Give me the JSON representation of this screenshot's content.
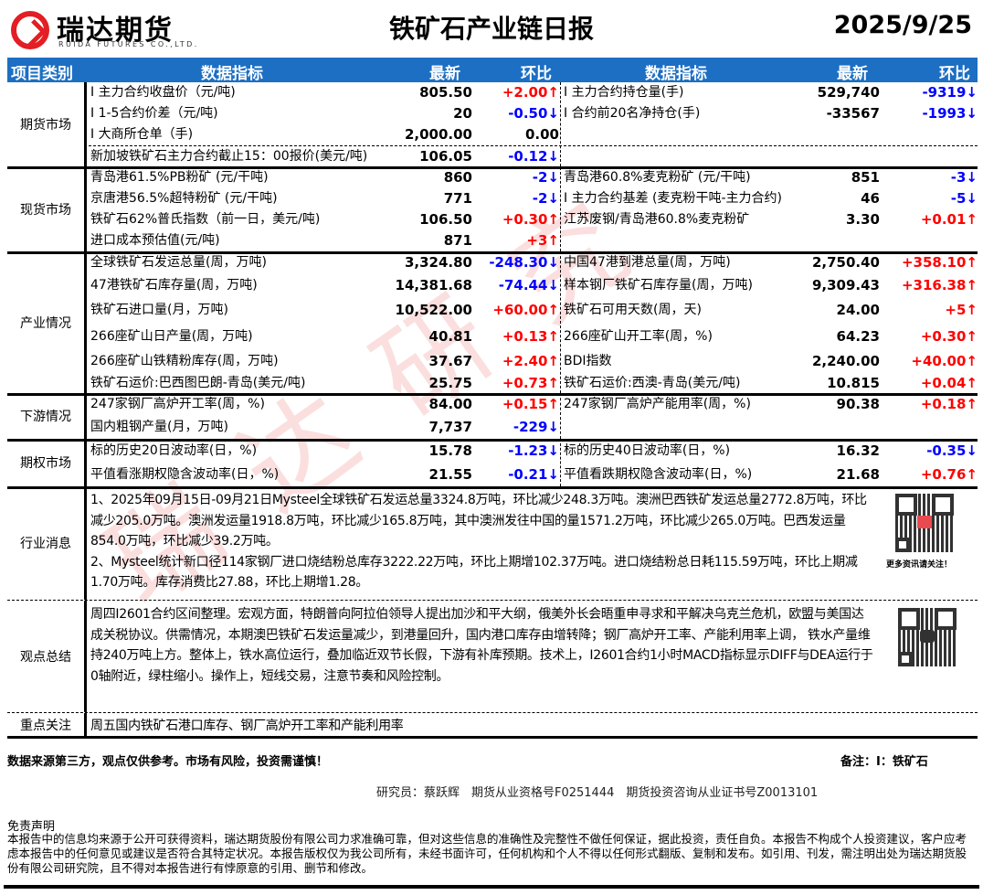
{
  "header": {
    "logo_cn": "瑞达期货",
    "logo_en": "RUIDA FUTURES CO.,LTD.",
    "title": "铁矿石产业链日报",
    "date": "2025/9/25"
  },
  "watermark": "瑞达研究",
  "columns": {
    "category": "项目类别",
    "indicator": "数据指标",
    "latest": "最新",
    "change": "环比",
    "indicator2": "数据指标",
    "latest2": "最新",
    "change2": "环比"
  },
  "colors": {
    "header_bg": "#1c6fc3",
    "up": "#ff0000",
    "down": "#0000ff"
  },
  "sections": [
    {
      "category": "期货市场",
      "rows": [
        {
          "left": {
            "label": "I 主力合约收盘价（元/吨)",
            "value": "805.50",
            "change": "+2.00↑",
            "dir": "up"
          },
          "right": {
            "label": "I 主力合约持仓量(手)",
            "value": "529,740",
            "change": "-9319↓",
            "dir": "down"
          }
        },
        {
          "left": {
            "label": "I 1-5合约价差（元/吨)",
            "value": "20",
            "change": "-0.50↓",
            "dir": "down"
          },
          "right": {
            "label": "I 合约前20名净持仓(手)",
            "value": "-33567",
            "change": "-1993↓",
            "dir": "down"
          }
        },
        {
          "left": {
            "label": "I 大商所仓单（手)",
            "value": "2,000.00",
            "change": "0.00",
            "dir": "flat"
          },
          "right": null
        },
        {
          "left": {
            "label": "新加坡铁矿石主力合约截止15：00报价(美元/吨)",
            "value": "106.05",
            "change": "-0.12↓",
            "dir": "down"
          },
          "right": null
        }
      ]
    },
    {
      "category": "现货市场",
      "rows": [
        {
          "left": {
            "label": "青岛港61.5%PB粉矿 (元/干吨)",
            "value": "860",
            "change": "-2↓",
            "dir": "down"
          },
          "right": {
            "label": "青岛港60.8%麦克粉矿 (元/干吨)",
            "value": "851",
            "change": "-3↓",
            "dir": "down"
          }
        },
        {
          "left": {
            "label": "京唐港56.5%超特粉矿 (元/干吨)",
            "value": "771",
            "change": "-2↓",
            "dir": "down"
          },
          "right": {
            "label": "I 主力合约基差 (麦克粉干吨-主力合约)",
            "value": "46",
            "change": "-5↓",
            "dir": "down"
          }
        },
        {
          "left": {
            "label": "铁矿石62%普氏指数（前一日，美元/吨)",
            "value": "106.50",
            "change": "+0.30↑",
            "dir": "up"
          },
          "right": {
            "label": "江苏废钢/青岛港60.8%麦克粉矿",
            "value": "3.30",
            "change": "+0.01↑",
            "dir": "up"
          }
        },
        {
          "left": {
            "label": "进口成本预估值(元/吨)",
            "value": "871",
            "change": "+3↑",
            "dir": "up"
          },
          "right": null
        }
      ]
    },
    {
      "category": "产业情况",
      "rows": [
        {
          "left": {
            "label": "全球铁矿石发运总量(周，万吨)",
            "value": "3,324.80",
            "change": "-248.30↓",
            "dir": "down"
          },
          "right": {
            "label": "中国47港到港总量(周，万吨)",
            "value": "2,750.40",
            "change": "+358.10↑",
            "dir": "up"
          }
        },
        {
          "left": {
            "label": "47港铁矿石库存量(周，万吨)",
            "value": "14,381.68",
            "change": "-74.44↓",
            "dir": "down"
          },
          "right": {
            "label": "样本钢厂铁矿石库存量(周，万吨)",
            "value": "9,309.43",
            "change": "+316.38↑",
            "dir": "up"
          }
        },
        {
          "left": {
            "label": "铁矿石进口量(月，万吨)",
            "value": "10,522.00",
            "change": "+60.00↑",
            "dir": "up"
          },
          "right": {
            "label": "铁矿石可用天数(周，天)",
            "value": "24.00",
            "change": "+5↑",
            "dir": "up"
          }
        },
        {
          "left": {
            "label": "266座矿山日产量(周，万吨)",
            "value": "40.81",
            "change": "+0.13↑",
            "dir": "up"
          },
          "right": {
            "label": "266座矿山开工率(周，%)",
            "value": "64.23",
            "change": "+0.30↑",
            "dir": "up"
          }
        },
        {
          "left": {
            "label": "266座矿山铁精粉库存(周，万吨)",
            "value": "37.67",
            "change": "+2.40↑",
            "dir": "up"
          },
          "right": {
            "label": "BDI指数",
            "value": "2,240.00",
            "change": "+40.00↑",
            "dir": "up"
          }
        },
        {
          "left": {
            "label": "铁矿石运价:巴西图巴朗-青岛(美元/吨)",
            "value": "25.75",
            "change": "+0.73↑",
            "dir": "up"
          },
          "right": {
            "label": "铁矿石运价:西澳-青岛(美元/吨)",
            "value": "10.815",
            "change": "+0.04↑",
            "dir": "up"
          }
        }
      ]
    },
    {
      "category": "下游情况",
      "rows": [
        {
          "left": {
            "label": "247家钢厂高炉开工率(周，%)",
            "value": "84.00",
            "change": "+0.15↑",
            "dir": "up"
          },
          "right": {
            "label": "247家钢厂高炉产能用率(周，%)",
            "value": "90.38",
            "change": "+0.18↑",
            "dir": "up"
          }
        },
        {
          "left": {
            "label": "国内粗钢产量(月，万吨)",
            "value": "7,737",
            "change": "-229↓",
            "dir": "down"
          },
          "right": null
        }
      ]
    },
    {
      "category": "期权市场",
      "rows": [
        {
          "left": {
            "label": "标的历史20日波动率(日，%)",
            "value": "15.78",
            "change": "-1.23↓",
            "dir": "down"
          },
          "right": {
            "label": "标的历史40日波动率(日，%)",
            "value": "16.32",
            "change": "-0.35↓",
            "dir": "down"
          }
        },
        {
          "left": {
            "label": "平值看涨期权隐含波动率(日，%)",
            "value": "21.55",
            "change": "-0.21↓",
            "dir": "down"
          },
          "right": {
            "label": "平值看跌期权隐含波动率(日，%)",
            "value": "21.68",
            "change": "+0.76↑",
            "dir": "up"
          }
        }
      ]
    }
  ],
  "news": {
    "category": "行业消息",
    "text": "1、2025年09月15日-09月21日Mysteel全球铁矿石发运总量3324.8万吨，环比减少248.3万吨。澳洲巴西铁矿发运总量2772.8万吨，环比减少205.0万吨。澳洲发运量1918.8万吨，环比减少165.8万吨，其中澳洲发往中国的量1571.2万吨，环比减少265.0万吨。巴西发运量854.0万吨，环比减少39.2万吨。\n2、Mysteel统计新口径114家钢厂进口烧结粉总库存3222.22万吨，环比上期增102.37万吨。进口烧结粉总日耗115.59万吨，环比上期减1.70万吨。库存消费比27.88，环比上期增1.28。",
    "qr_caption": "更多资讯请关注！"
  },
  "view": {
    "category": "观点总结",
    "text": "周四I2601合约区间整理。宏观方面，特朗普向阿拉伯领导人提出加沙和平大纲，俄美外长会晤重申寻求和平解决乌克兰危机，欧盟与美国达成关税协议。供需情况，本期澳巴铁矿石发运量减少，到港量回升，国内港口库存由增转降；钢厂高炉开工率、产能利用率上调， 铁水产量维持240万吨上方。整体上，铁水高位运行，叠加临近双节长假，下游有补库预期。技术上，I2601合约1小时MACD指标显示DIFF与DEA运行于0轴附近，绿柱缩小。操作上，短线交易，注意节奏和风险控制。"
  },
  "focus": {
    "category": "重点关注",
    "text": "周五国内铁矿石港口库存、钢厂高炉开工率和产能利用率"
  },
  "footer": {
    "source_note": "数据来源第三方，观点仅供参考。市场有风险，投资需谨慎！",
    "remark": "备注：I：铁矿石",
    "researcher": "研究员：蔡跃辉　期货从业资格号F0251444　期货投资咨询从业证书号Z0013101",
    "disclaimer_title": "免责声明",
    "disclaimer": "本报告中的信息均来源于公开可获得资料，瑞达期货股份有限公司力求准确可靠，但对这些信息的准确性及完整性不做任何保证，据此投资，责任自负。本报告不构成个人投资建议，客户应考虑本报告中的任何意见或建议是否符合其特定状况。本报告版权仅为我公司所有，未经书面许可，任何机构和个人不得以任何形式翻版、复制和发布。如引用、刊发，需注明出处为瑞达期货股份有限公司研究院，且不得对本报告进行有悖原意的引用、删节和修改。"
  }
}
